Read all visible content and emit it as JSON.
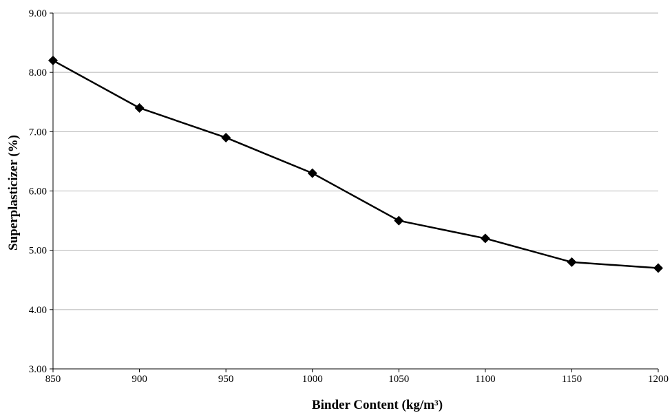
{
  "chart_data": {
    "type": "line",
    "title": "",
    "xlabel": "Binder  Content (kg/m³)",
    "ylabel": "Superplasticizer (%)",
    "x": [
      850,
      900,
      950,
      1000,
      1050,
      1100,
      1150,
      1200
    ],
    "xlim": [
      850,
      1200
    ],
    "ylim": [
      3,
      9
    ],
    "x_ticks": [
      850,
      900,
      950,
      1000,
      1050,
      1100,
      1150,
      1200
    ],
    "x_tick_labels": [
      "850",
      "900",
      "950",
      "1000",
      "1050",
      "1100",
      "1150",
      "1200"
    ],
    "y_ticks": [
      3,
      4,
      5,
      6,
      7,
      8,
      9
    ],
    "y_tick_labels": [
      "3.00",
      "4.00",
      "5.00",
      "6.00",
      "7.00",
      "8.00",
      "9.00"
    ],
    "grid": "horizontal",
    "legend": "none",
    "series": [
      {
        "marker": "diamond",
        "color": "#000000",
        "values": [
          8.2,
          7.4,
          6.9,
          6.3,
          5.5,
          5.2,
          4.8,
          4.7
        ]
      }
    ],
    "colors": {
      "line": "#000000",
      "grid": "#b3b3b3",
      "axis": "#000000",
      "background": "#ffffff"
    }
  }
}
